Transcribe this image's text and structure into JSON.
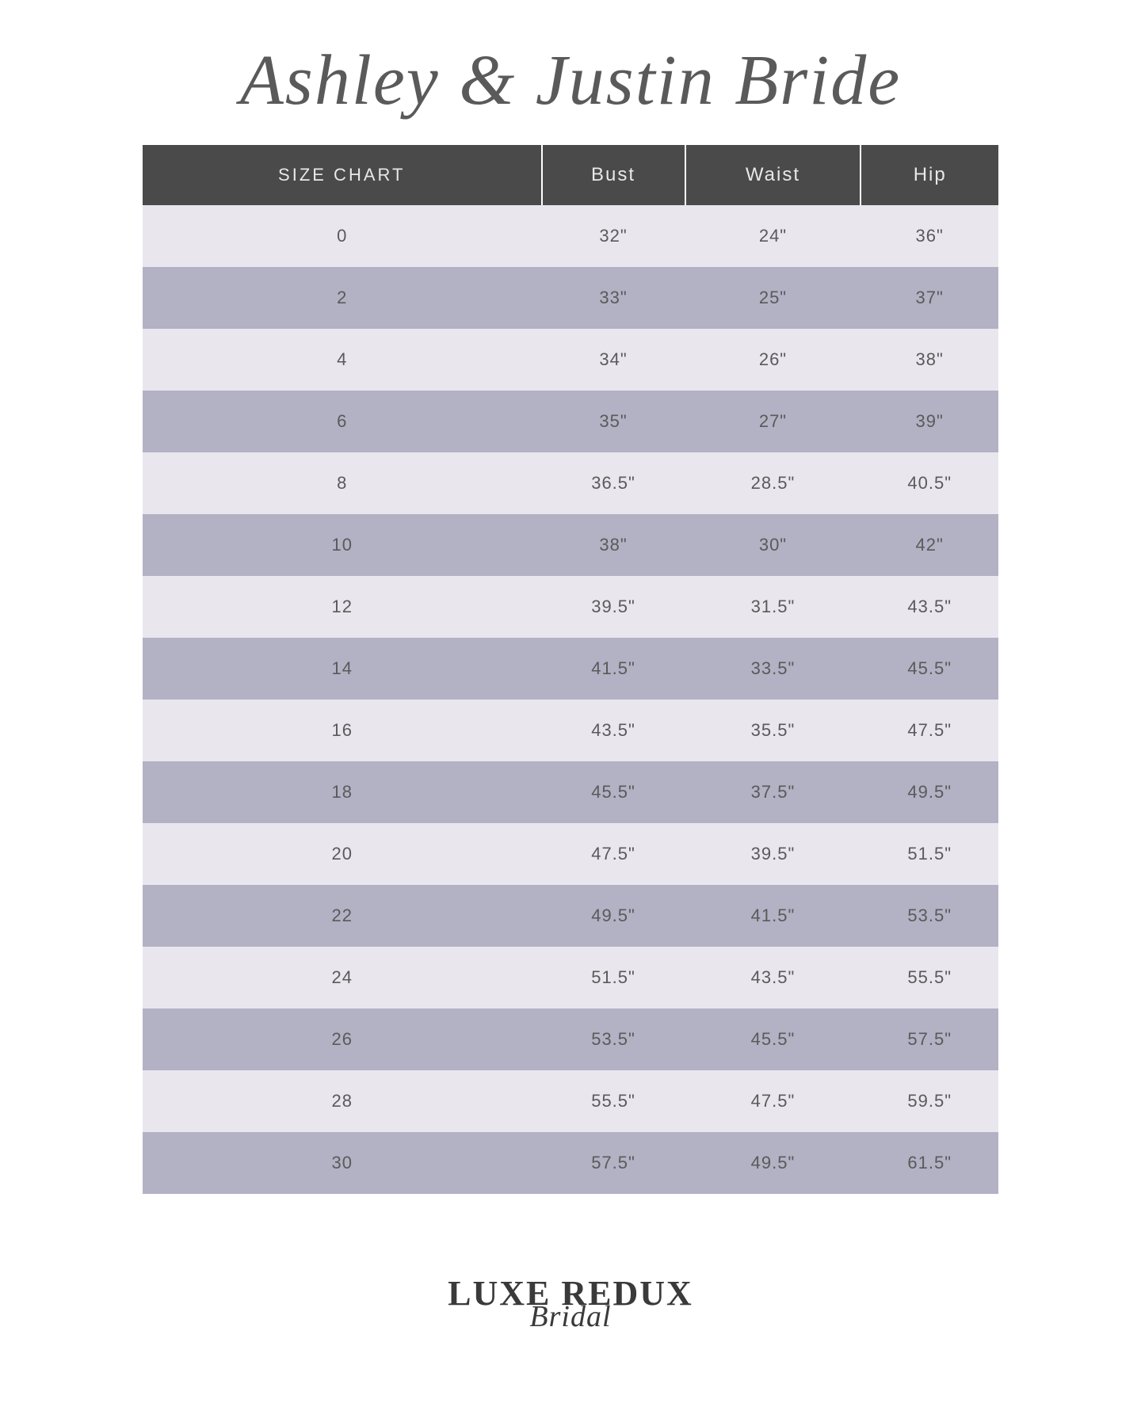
{
  "title": "Ashley & Justin Bride",
  "table": {
    "type": "table",
    "columns": [
      "SIZE CHART",
      "Bust",
      "Waist",
      "Hip"
    ],
    "rows": [
      [
        "0",
        "32\"",
        "24\"",
        "36\""
      ],
      [
        "2",
        "33\"",
        "25\"",
        "37\""
      ],
      [
        "4",
        "34\"",
        "26\"",
        "38\""
      ],
      [
        "6",
        "35\"",
        "27\"",
        "39\""
      ],
      [
        "8",
        "36.5\"",
        "28.5\"",
        "40.5\""
      ],
      [
        "10",
        "38\"",
        "30\"",
        "42\""
      ],
      [
        "12",
        "39.5\"",
        "31.5\"",
        "43.5\""
      ],
      [
        "14",
        "41.5\"",
        "33.5\"",
        "45.5\""
      ],
      [
        "16",
        "43.5\"",
        "35.5\"",
        "47.5\""
      ],
      [
        "18",
        "45.5\"",
        "37.5\"",
        "49.5\""
      ],
      [
        "20",
        "47.5\"",
        "39.5\"",
        "51.5\""
      ],
      [
        "22",
        "49.5\"",
        "41.5\"",
        "53.5\""
      ],
      [
        "24",
        "51.5\"",
        "43.5\"",
        "55.5\""
      ],
      [
        "26",
        "53.5\"",
        "45.5\"",
        "57.5\""
      ],
      [
        "28",
        "55.5\"",
        "47.5\"",
        "59.5\""
      ],
      [
        "30",
        "57.5\"",
        "49.5\"",
        "61.5\""
      ]
    ],
    "header_bg": "#4a4a4a",
    "header_text_color": "#e8e8e8",
    "row_light_bg": "#e9e6ee",
    "row_dark_bg": "#b3b1c4",
    "cell_text_color": "#5a5a5a",
    "header_fontsize": 24,
    "cell_fontsize": 22,
    "column_count": 4
  },
  "logo": {
    "main": "LUXE REDUX",
    "sub": "Bridal"
  },
  "background_color": "#ffffff",
  "title_color": "#5a5a5a"
}
